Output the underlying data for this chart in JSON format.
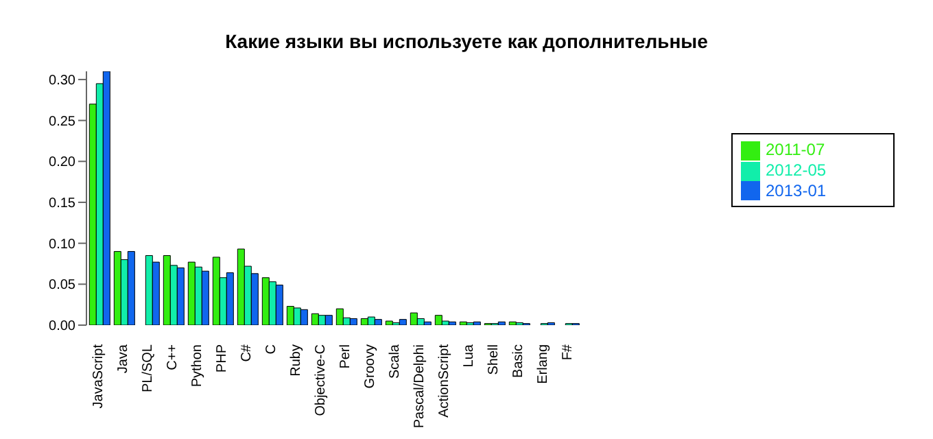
{
  "chart_data": {
    "type": "bar",
    "title": "Какие языки вы используете как дополнительные",
    "categories": [
      "JavaScript",
      "Java",
      "PL/SQL",
      "C++",
      "Python",
      "PHP",
      "C#",
      "C",
      "Ruby",
      "Objective-C",
      "Perl",
      "Groovy",
      "Scala",
      "Pascal/Delphi",
      "ActionScript",
      "Lua",
      "Shell",
      "Basic",
      "Erlang",
      "F#"
    ],
    "series": [
      {
        "name": "2011-07",
        "color": "#33ee11",
        "values": [
          0.27,
          0.09,
          0.0,
          0.085,
          0.077,
          0.083,
          0.093,
          0.058,
          0.023,
          0.014,
          0.02,
          0.008,
          0.005,
          0.015,
          0.012,
          0.004,
          0.002,
          0.004,
          0.0,
          0.0
        ]
      },
      {
        "name": "2012-05",
        "color": "#11eeaa",
        "values": [
          0.295,
          0.08,
          0.085,
          0.073,
          0.071,
          0.058,
          0.072,
          0.053,
          0.021,
          0.012,
          0.009,
          0.01,
          0.003,
          0.008,
          0.005,
          0.003,
          0.002,
          0.003,
          0.002,
          0.002
        ]
      },
      {
        "name": "2013-01",
        "color": "#1166ee",
        "values": [
          0.31,
          0.09,
          0.077,
          0.07,
          0.066,
          0.064,
          0.063,
          0.049,
          0.019,
          0.012,
          0.008,
          0.007,
          0.007,
          0.004,
          0.004,
          0.004,
          0.004,
          0.002,
          0.003,
          0.002
        ]
      }
    ],
    "ylim": [
      0,
      0.31
    ],
    "yticks": [
      {
        "value": 0,
        "label": "0.00"
      },
      {
        "value": 0.05,
        "label": "0.05"
      },
      {
        "value": 0.1,
        "label": "0.10"
      },
      {
        "value": 0.15,
        "label": "0.15"
      },
      {
        "value": 0.2,
        "label": "0.20"
      },
      {
        "value": 0.25,
        "label": "0.25"
      },
      {
        "value": 0.3,
        "label": "0.30"
      }
    ],
    "legend": "top right",
    "grid": false
  }
}
